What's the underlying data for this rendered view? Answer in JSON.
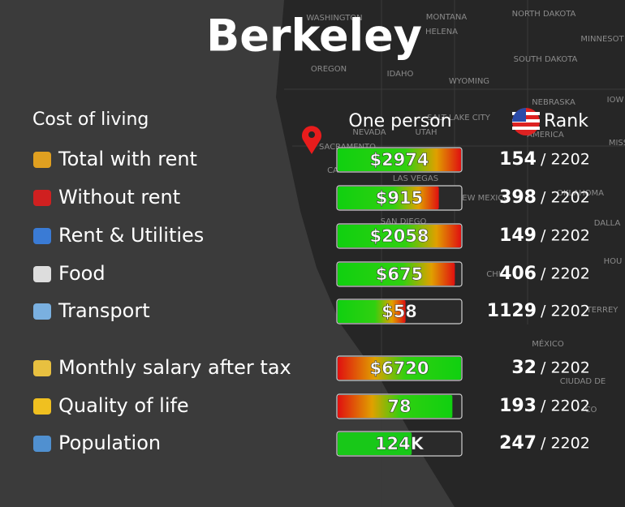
{
  "title": "Berkeley",
  "header": {
    "section": "Cost of living",
    "value_column": "One person",
    "rank_column": "Rank"
  },
  "map_labels": [
    "WASHINGTON",
    "MONTANA",
    "NORTH DAKOTA",
    "HELENA",
    "MINNESOT",
    "OREGON",
    "SOUTH DAKOTA",
    "IDAHO",
    "WYOMING",
    "NEBRASKA",
    "IOW",
    "SALT LAKE CITY",
    "NEVADA",
    "UTAH",
    "AMERICA",
    "MISS",
    "SACRAMENTO",
    "CA",
    "LAS VEGAS",
    "NEW MEXICO",
    "OKLAHOMA",
    "SAN DIEGO",
    "DALLA",
    "CHI",
    "HOU",
    "TERREY",
    "MÉXICO",
    "CIUDAD DE",
    "CO"
  ],
  "rows": [
    {
      "label": "Total with rent",
      "value": "$2974",
      "rank": 154,
      "total": "/ 2202",
      "rank_color": "#ff1a1a"
    },
    {
      "label": "Without rent",
      "value": "$915",
      "rank": 398,
      "total": "/ 2202",
      "rank_color": "#ff1a1a"
    },
    {
      "label": "Rent & Utilities",
      "value": "$2058",
      "rank": 149,
      "total": "/ 2202",
      "rank_color": "#ff1a1a"
    },
    {
      "label": "Food",
      "value": "$675",
      "rank": 406,
      "total": "/ 2202",
      "rank_color": "#ff1a1a"
    },
    {
      "label": "Transport",
      "value": "$58",
      "rank": 1129,
      "total": "/ 2202",
      "rank_color": "#e6e61a"
    },
    {
      "label": "Monthly salary after tax",
      "value": "$6720",
      "rank": 32,
      "total": "/ 2202",
      "rank_color": "#1ad11a"
    },
    {
      "label": "Quality of life",
      "value": 78,
      "rank": 193,
      "total": "/ 2202",
      "rank_color": "#1ad11a"
    },
    {
      "label": "Population",
      "value": "124K",
      "rank": 247,
      "total": "/ 2202",
      "rank_color": "#ffffff"
    }
  ]
}
